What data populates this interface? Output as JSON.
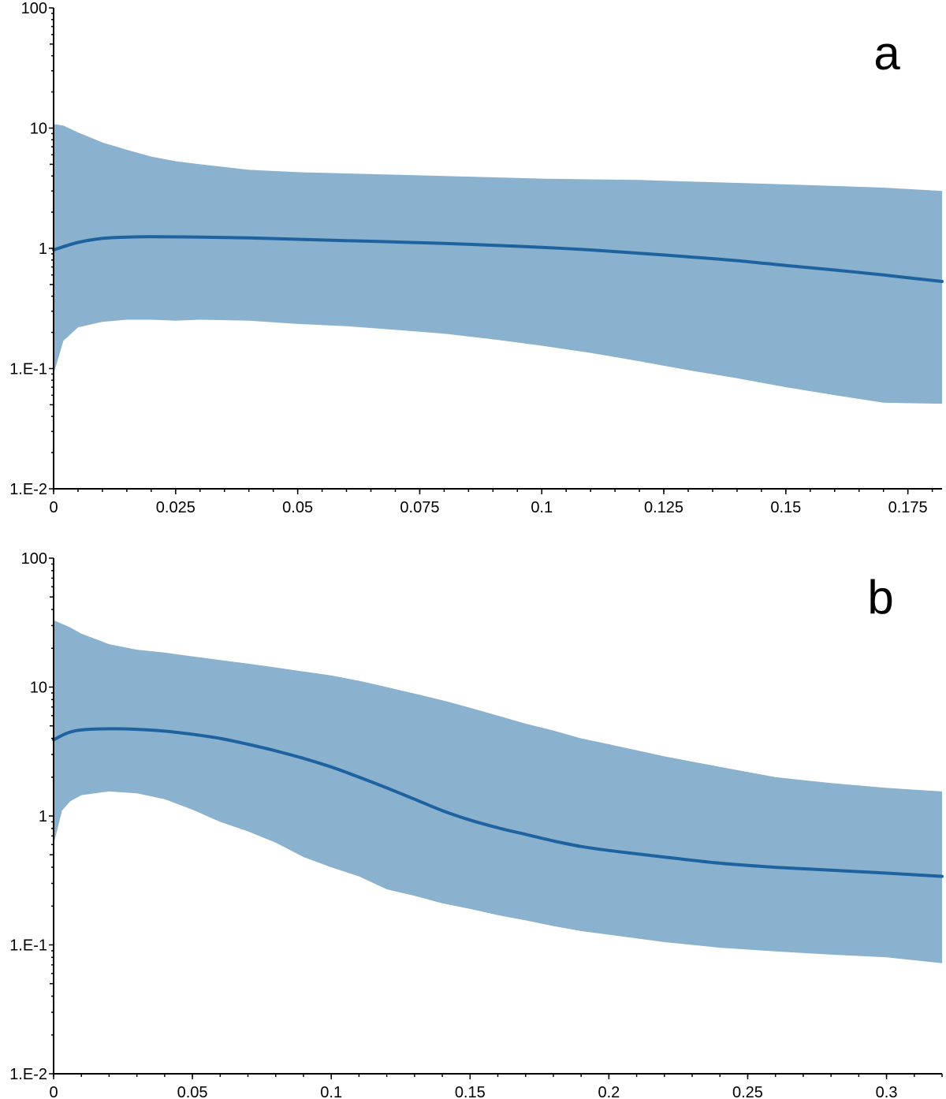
{
  "colors": {
    "band": "#8ab1cd",
    "line": "#1f62a0",
    "axis": "#000000"
  },
  "chart_data": [
    {
      "type": "area",
      "panel_label": "a",
      "title": "",
      "xlabel": "",
      "ylabel": "",
      "yscale": "log",
      "xlim": [
        0,
        0.182
      ],
      "ylim": [
        0.01,
        100
      ],
      "grid": false,
      "x_ticks": [
        0,
        0.025,
        0.05,
        0.075,
        0.1,
        0.125,
        0.15,
        0.175
      ],
      "x_tick_labels": [
        "0",
        "0.025",
        "0.05",
        "0.075",
        "0.1",
        "0.125",
        "0.15",
        "0.175"
      ],
      "y_ticks": [
        0.01,
        0.1,
        1,
        10,
        100
      ],
      "y_tick_labels": [
        "1.E-2",
        "1.E-1",
        "1",
        "10",
        "100"
      ],
      "series": [
        {
          "kind": "line",
          "x": [
            0,
            0.005,
            0.01,
            0.015,
            0.02,
            0.03,
            0.04,
            0.05,
            0.06,
            0.07,
            0.08,
            0.09,
            0.1,
            0.11,
            0.12,
            0.13,
            0.14,
            0.15,
            0.16,
            0.17,
            0.182
          ],
          "y": [
            0.97,
            1.12,
            1.21,
            1.24,
            1.25,
            1.24,
            1.22,
            1.19,
            1.16,
            1.13,
            1.1,
            1.06,
            1.02,
            0.97,
            0.91,
            0.85,
            0.79,
            0.72,
            0.66,
            0.6,
            0.53
          ]
        },
        {
          "kind": "band",
          "x": [
            0,
            0.002,
            0.005,
            0.01,
            0.015,
            0.02,
            0.025,
            0.03,
            0.04,
            0.05,
            0.06,
            0.07,
            0.08,
            0.09,
            0.1,
            0.11,
            0.12,
            0.13,
            0.14,
            0.15,
            0.16,
            0.17,
            0.182
          ],
          "upper": [
            10.8,
            10.5,
            9.2,
            7.6,
            6.6,
            5.8,
            5.3,
            5.0,
            4.5,
            4.3,
            4.2,
            4.1,
            4.0,
            3.9,
            3.8,
            3.75,
            3.7,
            3.6,
            3.5,
            3.4,
            3.3,
            3.2,
            3.0
          ],
          "lower": [
            0.09,
            0.17,
            0.22,
            0.245,
            0.255,
            0.255,
            0.25,
            0.255,
            0.25,
            0.235,
            0.225,
            0.21,
            0.195,
            0.175,
            0.155,
            0.135,
            0.115,
            0.097,
            0.083,
            0.07,
            0.06,
            0.052,
            0.051
          ]
        }
      ]
    },
    {
      "type": "area",
      "panel_label": "b",
      "title": "",
      "xlabel": "",
      "ylabel": "",
      "yscale": "log",
      "xlim": [
        0,
        0.32
      ],
      "ylim": [
        0.01,
        100
      ],
      "grid": false,
      "x_ticks": [
        0,
        0.05,
        0.1,
        0.15,
        0.2,
        0.25,
        0.3
      ],
      "x_tick_labels": [
        "0",
        "0.05",
        "0.1",
        "0.15",
        "0.2",
        "0.25",
        "0.3"
      ],
      "y_ticks": [
        0.01,
        0.1,
        1,
        10,
        100
      ],
      "y_tick_labels": [
        "1.E-2",
        "1.E-1",
        "1",
        "10",
        "100"
      ],
      "series": [
        {
          "kind": "line",
          "x": [
            0,
            0.005,
            0.01,
            0.02,
            0.03,
            0.04,
            0.05,
            0.06,
            0.07,
            0.08,
            0.09,
            0.1,
            0.11,
            0.12,
            0.13,
            0.14,
            0.15,
            0.16,
            0.17,
            0.18,
            0.19,
            0.2,
            0.22,
            0.24,
            0.26,
            0.28,
            0.3,
            0.32
          ],
          "y": [
            3.9,
            4.4,
            4.65,
            4.75,
            4.7,
            4.55,
            4.3,
            4.0,
            3.6,
            3.2,
            2.8,
            2.4,
            2.0,
            1.65,
            1.35,
            1.1,
            0.93,
            0.81,
            0.72,
            0.64,
            0.58,
            0.54,
            0.48,
            0.43,
            0.4,
            0.38,
            0.36,
            0.34
          ]
        },
        {
          "kind": "band",
          "x": [
            0,
            0.003,
            0.006,
            0.01,
            0.02,
            0.03,
            0.04,
            0.05,
            0.06,
            0.07,
            0.08,
            0.09,
            0.1,
            0.11,
            0.12,
            0.13,
            0.14,
            0.15,
            0.16,
            0.17,
            0.18,
            0.19,
            0.2,
            0.22,
            0.24,
            0.26,
            0.28,
            0.3,
            0.32
          ],
          "upper": [
            33,
            31,
            29,
            26,
            21.5,
            19.5,
            18.5,
            17.3,
            16.2,
            15.2,
            14.2,
            13.2,
            12.3,
            11.2,
            10.0,
            8.9,
            7.9,
            6.9,
            6.0,
            5.2,
            4.6,
            4.0,
            3.6,
            2.9,
            2.4,
            2.0,
            1.8,
            1.65,
            1.55
          ],
          "lower": [
            0.6,
            1.1,
            1.3,
            1.45,
            1.55,
            1.5,
            1.35,
            1.12,
            0.9,
            0.76,
            0.62,
            0.48,
            0.4,
            0.34,
            0.27,
            0.24,
            0.21,
            0.19,
            0.17,
            0.155,
            0.14,
            0.128,
            0.12,
            0.105,
            0.095,
            0.089,
            0.084,
            0.08,
            0.072
          ]
        }
      ]
    }
  ]
}
